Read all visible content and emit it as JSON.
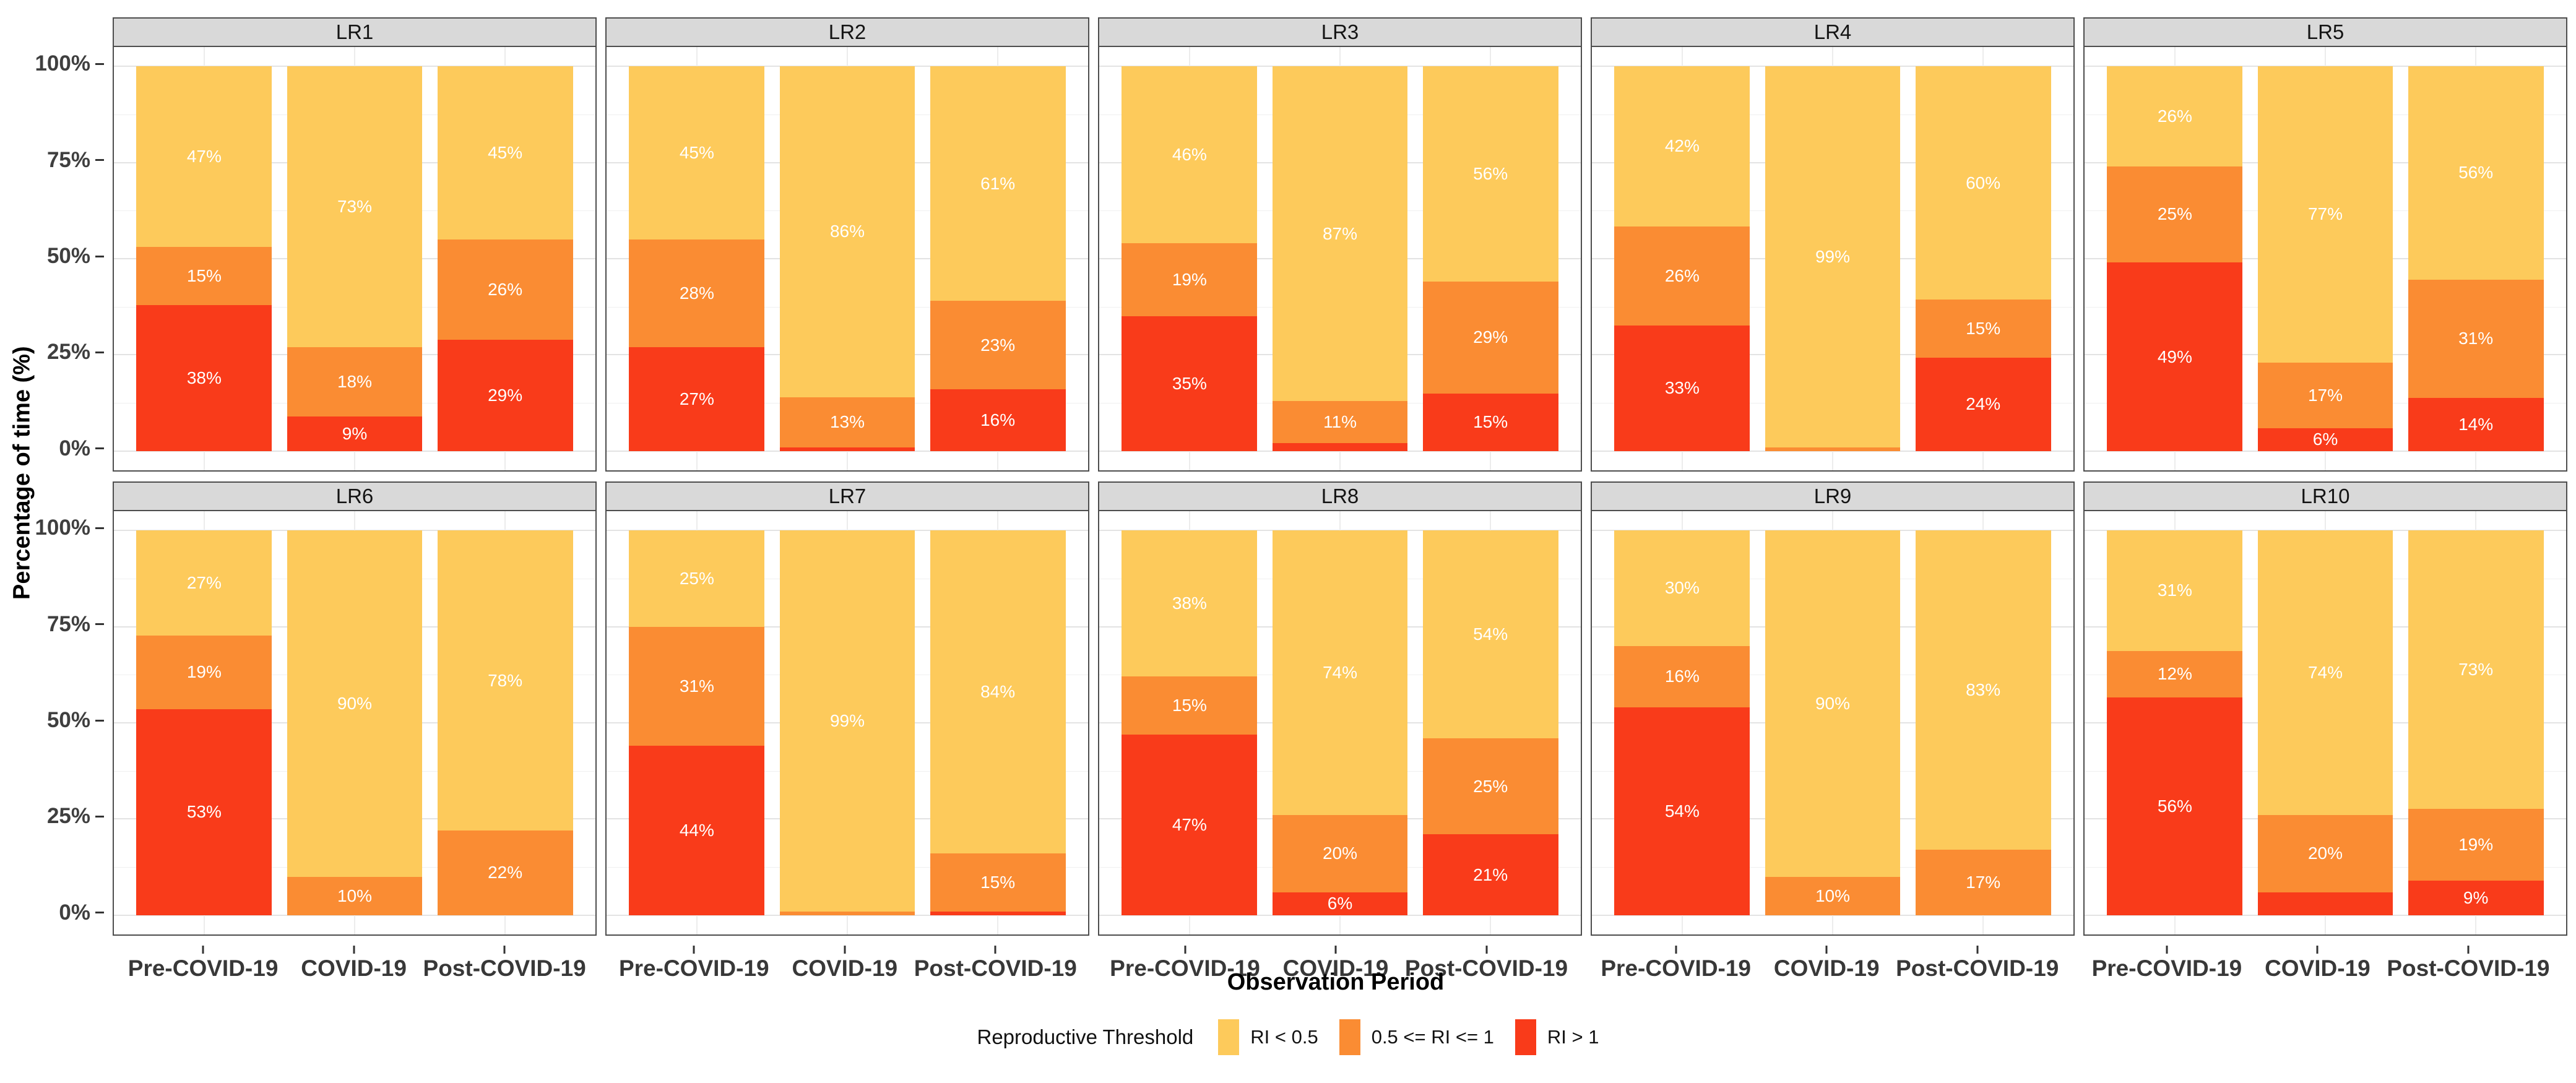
{
  "chart_data": {
    "type": "bar",
    "stacked": true,
    "percent_scale": true,
    "xlabel": "Observation Period",
    "ylabel": "Percentage of time (%)",
    "y_ticks": [
      {
        "value": 100,
        "label": "100%"
      },
      {
        "value": 75,
        "label": "75%"
      },
      {
        "value": 50,
        "label": "50%"
      },
      {
        "value": 25,
        "label": "25%"
      },
      {
        "value": 0,
        "label": "0%"
      }
    ],
    "ylim": [
      0,
      100
    ],
    "grid": "major+minor",
    "categories": [
      "Pre-COVID-19",
      "COVID-19",
      "Post-COVID-19"
    ],
    "legend": {
      "title": "Reproductive Threshold",
      "position": "bottom",
      "entries": [
        {
          "label": "RI < 0.5",
          "color": "#FDCA5B"
        },
        {
          "label": "0.5 <= RI <= 1",
          "color": "#FA8C33"
        },
        {
          "label": "RI > 1",
          "color": "#F93B1A"
        }
      ]
    },
    "segment_order_top_to_bottom": [
      "RI < 0.5",
      "0.5 <= RI <= 1",
      "RI > 1"
    ],
    "facets": [
      {
        "title": "LR1",
        "bars": [
          {
            "category": "Pre-COVID-19",
            "segments": [
              {
                "v": 47,
                "label": "47%"
              },
              {
                "v": 15,
                "label": "15%"
              },
              {
                "v": 38,
                "label": "38%"
              }
            ]
          },
          {
            "category": "COVID-19",
            "segments": [
              {
                "v": 73,
                "label": "73%"
              },
              {
                "v": 18,
                "label": "18%"
              },
              {
                "v": 9,
                "label": "9%"
              }
            ]
          },
          {
            "category": "Post-COVID-19",
            "segments": [
              {
                "v": 45,
                "label": "45%"
              },
              {
                "v": 26,
                "label": "26%"
              },
              {
                "v": 29,
                "label": "29%"
              }
            ]
          }
        ]
      },
      {
        "title": "LR2",
        "bars": [
          {
            "category": "Pre-COVID-19",
            "segments": [
              {
                "v": 45,
                "label": "45%"
              },
              {
                "v": 28,
                "label": "28%"
              },
              {
                "v": 27,
                "label": "27%"
              }
            ]
          },
          {
            "category": "COVID-19",
            "segments": [
              {
                "v": 86,
                "label": "86%"
              },
              {
                "v": 13,
                "label": "13%"
              },
              {
                "v": 1,
                "label": ""
              }
            ]
          },
          {
            "category": "Post-COVID-19",
            "segments": [
              {
                "v": 61,
                "label": "61%"
              },
              {
                "v": 23,
                "label": "23%"
              },
              {
                "v": 16,
                "label": "16%"
              }
            ]
          }
        ]
      },
      {
        "title": "LR3",
        "bars": [
          {
            "category": "Pre-COVID-19",
            "segments": [
              {
                "v": 46,
                "label": "46%"
              },
              {
                "v": 19,
                "label": "19%"
              },
              {
                "v": 35,
                "label": "35%"
              }
            ]
          },
          {
            "category": "COVID-19",
            "segments": [
              {
                "v": 87,
                "label": "87%"
              },
              {
                "v": 11,
                "label": "11%"
              },
              {
                "v": 2,
                "label": ""
              }
            ]
          },
          {
            "category": "Post-COVID-19",
            "segments": [
              {
                "v": 56,
                "label": "56%"
              },
              {
                "v": 29,
                "label": "29%"
              },
              {
                "v": 15,
                "label": "15%"
              }
            ]
          }
        ]
      },
      {
        "title": "LR4",
        "bars": [
          {
            "category": "Pre-COVID-19",
            "segments": [
              {
                "v": 42,
                "label": "42%"
              },
              {
                "v": 26,
                "label": "26%"
              },
              {
                "v": 33,
                "label": "33%"
              }
            ]
          },
          {
            "category": "COVID-19",
            "segments": [
              {
                "v": 99,
                "label": "99%"
              },
              {
                "v": 1,
                "label": ""
              },
              {
                "v": 0,
                "label": ""
              }
            ]
          },
          {
            "category": "Post-COVID-19",
            "segments": [
              {
                "v": 60,
                "label": "60%"
              },
              {
                "v": 15,
                "label": "15%"
              },
              {
                "v": 24,
                "label": "24%"
              }
            ]
          }
        ]
      },
      {
        "title": "LR5",
        "bars": [
          {
            "category": "Pre-COVID-19",
            "segments": [
              {
                "v": 26,
                "label": "26%"
              },
              {
                "v": 25,
                "label": "25%"
              },
              {
                "v": 49,
                "label": "49%"
              }
            ]
          },
          {
            "category": "COVID-19",
            "segments": [
              {
                "v": 77,
                "label": "77%"
              },
              {
                "v": 17,
                "label": "17%"
              },
              {
                "v": 6,
                "label": "6%"
              }
            ]
          },
          {
            "category": "Post-COVID-19",
            "segments": [
              {
                "v": 56,
                "label": "56%"
              },
              {
                "v": 31,
                "label": "31%"
              },
              {
                "v": 14,
                "label": "14%"
              }
            ]
          }
        ]
      },
      {
        "title": "LR6",
        "bars": [
          {
            "category": "Pre-COVID-19",
            "segments": [
              {
                "v": 27,
                "label": "27%"
              },
              {
                "v": 19,
                "label": "19%"
              },
              {
                "v": 53,
                "label": "53%"
              }
            ]
          },
          {
            "category": "COVID-19",
            "segments": [
              {
                "v": 90,
                "label": "90%"
              },
              {
                "v": 10,
                "label": "10%"
              },
              {
                "v": 0,
                "label": ""
              }
            ]
          },
          {
            "category": "Post-COVID-19",
            "segments": [
              {
                "v": 78,
                "label": "78%"
              },
              {
                "v": 22,
                "label": "22%"
              },
              {
                "v": 0,
                "label": ""
              }
            ]
          }
        ]
      },
      {
        "title": "LR7",
        "bars": [
          {
            "category": "Pre-COVID-19",
            "segments": [
              {
                "v": 25,
                "label": "25%"
              },
              {
                "v": 31,
                "label": "31%"
              },
              {
                "v": 44,
                "label": "44%"
              }
            ]
          },
          {
            "category": "COVID-19",
            "segments": [
              {
                "v": 99,
                "label": "99%"
              },
              {
                "v": 1,
                "label": ""
              },
              {
                "v": 0,
                "label": ""
              }
            ]
          },
          {
            "category": "Post-COVID-19",
            "segments": [
              {
                "v": 84,
                "label": "84%"
              },
              {
                "v": 15,
                "label": "15%"
              },
              {
                "v": 1,
                "label": ""
              }
            ]
          }
        ]
      },
      {
        "title": "LR8",
        "bars": [
          {
            "category": "Pre-COVID-19",
            "segments": [
              {
                "v": 38,
                "label": "38%"
              },
              {
                "v": 15,
                "label": "15%"
              },
              {
                "v": 47,
                "label": "47%"
              }
            ]
          },
          {
            "category": "COVID-19",
            "segments": [
              {
                "v": 74,
                "label": "74%"
              },
              {
                "v": 20,
                "label": "20%"
              },
              {
                "v": 6,
                "label": "6%"
              }
            ]
          },
          {
            "category": "Post-COVID-19",
            "segments": [
              {
                "v": 54,
                "label": "54%"
              },
              {
                "v": 25,
                "label": "25%"
              },
              {
                "v": 21,
                "label": "21%"
              }
            ]
          }
        ]
      },
      {
        "title": "LR9",
        "bars": [
          {
            "category": "Pre-COVID-19",
            "segments": [
              {
                "v": 30,
                "label": "30%"
              },
              {
                "v": 16,
                "label": "16%"
              },
              {
                "v": 54,
                "label": "54%"
              }
            ]
          },
          {
            "category": "COVID-19",
            "segments": [
              {
                "v": 90,
                "label": "90%"
              },
              {
                "v": 10,
                "label": "10%"
              },
              {
                "v": 0,
                "label": ""
              }
            ]
          },
          {
            "category": "Post-COVID-19",
            "segments": [
              {
                "v": 83,
                "label": "83%"
              },
              {
                "v": 17,
                "label": "17%"
              },
              {
                "v": 0,
                "label": ""
              }
            ]
          }
        ]
      },
      {
        "title": "LR10",
        "bars": [
          {
            "category": "Pre-COVID-19",
            "segments": [
              {
                "v": 31,
                "label": "31%"
              },
              {
                "v": 12,
                "label": "12%"
              },
              {
                "v": 56,
                "label": "56%"
              }
            ]
          },
          {
            "category": "COVID-19",
            "segments": [
              {
                "v": 74,
                "label": "74%"
              },
              {
                "v": 20,
                "label": "20%"
              },
              {
                "v": 6,
                "label": ""
              }
            ]
          },
          {
            "category": "Post-COVID-19",
            "segments": [
              {
                "v": 73,
                "label": "73%"
              },
              {
                "v": 19,
                "label": "19%"
              },
              {
                "v": 9,
                "label": "9%"
              }
            ]
          }
        ]
      }
    ]
  }
}
